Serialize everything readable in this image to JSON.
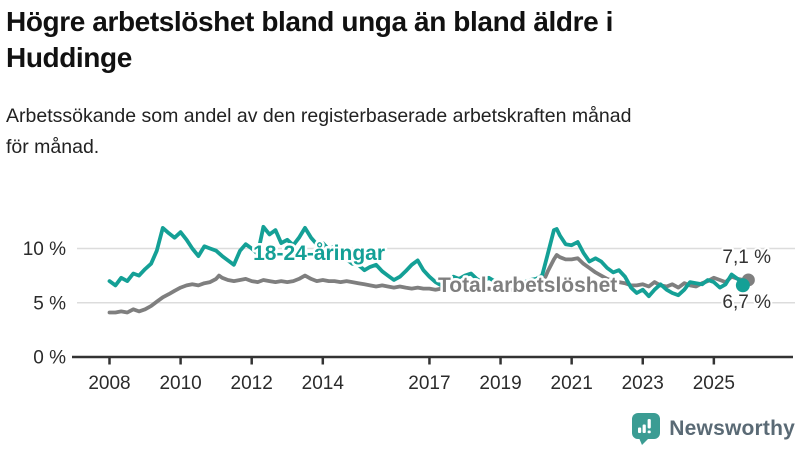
{
  "header": {
    "title": "Högre arbetslöshet bland unga än bland äldre i Huddinge",
    "title_lines": [
      "Högre arbetslöshet bland unga än bland äldre i",
      "Huddinge"
    ],
    "subtitle": "Arbetssökande som andel av den registerbaserade arbetskraften månad för månad.",
    "subtitle_lines": [
      "Arbetssökande som andel av den registerbaserade arbetskraften månad",
      "för månad."
    ]
  },
  "chart_data": {
    "type": "line",
    "title": "Högre arbetslöshet bland unga än bland äldre i Huddinge",
    "subtitle": "Arbetssökande som andel av den registerbaserade arbetskraften månad för månad.",
    "grid": "horizontal-only",
    "legend_position": "inline-labels-on-lines",
    "xlim": [
      2007.8,
      2026.1
    ],
    "ylim": [
      0,
      13.5
    ],
    "x_ticks": [
      2008,
      2010,
      2012,
      2014,
      2017,
      2019,
      2021,
      2023,
      2025
    ],
    "y_ticks": [
      {
        "value": 0,
        "label": "0 %"
      },
      {
        "value": 5,
        "label": "5 %"
      },
      {
        "value": 10,
        "label": "10 %"
      }
    ],
    "colors": {
      "youth": "#14A096",
      "total": "#7F7F7F",
      "grid": "#dcdcdc",
      "axis": "#333333",
      "text": "#2b2b2b"
    },
    "series": [
      {
        "name": "Total arbetslöshet",
        "color": "#7F7F7F",
        "end_label": "7,1 %",
        "end_value": 7.1,
        "label_pos": {
          "year": 2017.24,
          "pct": 5.99
        },
        "end_label_pos": {
          "year": 2026.6,
          "pct": 8.66
        },
        "points": [
          [
            2008.0,
            4.1
          ],
          [
            2008.17,
            4.1
          ],
          [
            2008.33,
            4.2
          ],
          [
            2008.5,
            4.1
          ],
          [
            2008.67,
            4.4
          ],
          [
            2008.83,
            4.2
          ],
          [
            2009.0,
            4.4
          ],
          [
            2009.17,
            4.7
          ],
          [
            2009.33,
            5.1
          ],
          [
            2009.5,
            5.5
          ],
          [
            2009.67,
            5.8
          ],
          [
            2009.83,
            6.1
          ],
          [
            2010.0,
            6.4
          ],
          [
            2010.17,
            6.6
          ],
          [
            2010.33,
            6.7
          ],
          [
            2010.5,
            6.6
          ],
          [
            2010.67,
            6.8
          ],
          [
            2010.83,
            6.9
          ],
          [
            2011.0,
            7.2
          ],
          [
            2011.08,
            7.5
          ],
          [
            2011.17,
            7.3
          ],
          [
            2011.33,
            7.1
          ],
          [
            2011.5,
            7.0
          ],
          [
            2011.67,
            7.1
          ],
          [
            2011.83,
            7.2
          ],
          [
            2012.0,
            7.0
          ],
          [
            2012.17,
            6.9
          ],
          [
            2012.33,
            7.1
          ],
          [
            2012.5,
            7.0
          ],
          [
            2012.67,
            6.9
          ],
          [
            2012.83,
            7.0
          ],
          [
            2013.0,
            6.9
          ],
          [
            2013.17,
            7.0
          ],
          [
            2013.33,
            7.2
          ],
          [
            2013.5,
            7.5
          ],
          [
            2013.67,
            7.2
          ],
          [
            2013.83,
            7.0
          ],
          [
            2014.0,
            7.1
          ],
          [
            2014.17,
            7.0
          ],
          [
            2014.33,
            7.0
          ],
          [
            2014.5,
            6.9
          ],
          [
            2014.67,
            7.0
          ],
          [
            2014.83,
            6.9
          ],
          [
            2015.0,
            6.8
          ],
          [
            2015.17,
            6.7
          ],
          [
            2015.33,
            6.6
          ],
          [
            2015.5,
            6.5
          ],
          [
            2015.67,
            6.6
          ],
          [
            2015.83,
            6.5
          ],
          [
            2016.0,
            6.4
          ],
          [
            2016.17,
            6.5
          ],
          [
            2016.33,
            6.4
          ],
          [
            2016.5,
            6.3
          ],
          [
            2016.67,
            6.4
          ],
          [
            2016.83,
            6.3
          ],
          [
            2017.0,
            6.3
          ],
          [
            2017.17,
            6.2
          ],
          [
            2017.33,
            6.3
          ],
          [
            2017.5,
            6.4
          ],
          [
            2017.67,
            6.4
          ],
          [
            2017.83,
            6.3
          ],
          [
            2018.0,
            6.3
          ],
          [
            2018.17,
            6.4
          ],
          [
            2018.33,
            6.3
          ],
          [
            2018.5,
            6.2
          ],
          [
            2018.67,
            6.3
          ],
          [
            2018.83,
            6.2
          ],
          [
            2019.0,
            6.2
          ],
          [
            2019.17,
            6.1
          ],
          [
            2019.33,
            6.2
          ],
          [
            2019.5,
            6.3
          ],
          [
            2019.67,
            6.3
          ],
          [
            2019.83,
            6.4
          ],
          [
            2020.0,
            6.4
          ],
          [
            2020.17,
            6.7
          ],
          [
            2020.33,
            7.9
          ],
          [
            2020.5,
            9.0
          ],
          [
            2020.58,
            9.4
          ],
          [
            2020.67,
            9.2
          ],
          [
            2020.83,
            9.0
          ],
          [
            2021.0,
            9.0
          ],
          [
            2021.17,
            9.1
          ],
          [
            2021.33,
            8.6
          ],
          [
            2021.5,
            8.2
          ],
          [
            2021.67,
            7.8
          ],
          [
            2021.83,
            7.5
          ],
          [
            2022.0,
            7.2
          ],
          [
            2022.17,
            7.0
          ],
          [
            2022.33,
            6.9
          ],
          [
            2022.5,
            6.8
          ],
          [
            2022.67,
            6.6
          ],
          [
            2022.83,
            6.6
          ],
          [
            2023.0,
            6.7
          ],
          [
            2023.17,
            6.5
          ],
          [
            2023.33,
            6.9
          ],
          [
            2023.5,
            6.6
          ],
          [
            2023.67,
            6.5
          ],
          [
            2023.83,
            6.7
          ],
          [
            2024.0,
            6.4
          ],
          [
            2024.17,
            6.8
          ],
          [
            2024.33,
            6.6
          ],
          [
            2024.5,
            6.5
          ],
          [
            2024.67,
            6.8
          ],
          [
            2024.83,
            7.0
          ],
          [
            2025.0,
            7.3
          ],
          [
            2025.17,
            7.1
          ],
          [
            2025.33,
            6.9
          ],
          [
            2025.5,
            7.4
          ],
          [
            2025.67,
            7.2
          ],
          [
            2025.83,
            7.1
          ]
        ]
      },
      {
        "name": "18-24-åringar",
        "color": "#14A096",
        "end_label": "6,7 %",
        "end_value": 6.7,
        "label_pos": {
          "year": 2012.04,
          "pct": 8.94
        },
        "end_label_pos": {
          "year": 2026.6,
          "pct": 4.52
        },
        "points": [
          [
            2008.0,
            7.0
          ],
          [
            2008.17,
            6.6
          ],
          [
            2008.33,
            7.3
          ],
          [
            2008.5,
            7.0
          ],
          [
            2008.67,
            7.7
          ],
          [
            2008.83,
            7.5
          ],
          [
            2009.0,
            8.1
          ],
          [
            2009.17,
            8.6
          ],
          [
            2009.33,
            9.8
          ],
          [
            2009.5,
            11.9
          ],
          [
            2009.67,
            11.4
          ],
          [
            2009.83,
            11.0
          ],
          [
            2010.0,
            11.5
          ],
          [
            2010.17,
            10.8
          ],
          [
            2010.33,
            10.0
          ],
          [
            2010.5,
            9.3
          ],
          [
            2010.67,
            10.2
          ],
          [
            2010.83,
            10.0
          ],
          [
            2011.0,
            9.8
          ],
          [
            2011.17,
            9.3
          ],
          [
            2011.33,
            8.9
          ],
          [
            2011.5,
            8.5
          ],
          [
            2011.67,
            9.8
          ],
          [
            2011.83,
            10.4
          ],
          [
            2012.0,
            10.0
          ],
          [
            2012.17,
            9.5
          ],
          [
            2012.33,
            12.0
          ],
          [
            2012.5,
            11.3
          ],
          [
            2012.67,
            11.7
          ],
          [
            2012.83,
            10.5
          ],
          [
            2013.0,
            10.8
          ],
          [
            2013.17,
            10.3
          ],
          [
            2013.33,
            11.0
          ],
          [
            2013.5,
            11.9
          ],
          [
            2013.67,
            11.0
          ],
          [
            2013.83,
            10.4
          ],
          [
            2014.0,
            10.5
          ],
          [
            2014.17,
            9.9
          ],
          [
            2014.33,
            10.2
          ],
          [
            2014.5,
            9.6
          ],
          [
            2014.67,
            9.0
          ],
          [
            2014.83,
            8.6
          ],
          [
            2015.0,
            8.5
          ],
          [
            2015.17,
            8.0
          ],
          [
            2015.33,
            8.3
          ],
          [
            2015.5,
            8.5
          ],
          [
            2015.67,
            7.9
          ],
          [
            2015.83,
            7.5
          ],
          [
            2016.0,
            7.1
          ],
          [
            2016.17,
            7.4
          ],
          [
            2016.33,
            7.9
          ],
          [
            2016.5,
            8.5
          ],
          [
            2016.67,
            8.9
          ],
          [
            2016.83,
            8.0
          ],
          [
            2017.0,
            7.4
          ],
          [
            2017.17,
            6.9
          ],
          [
            2017.33,
            6.6
          ],
          [
            2017.5,
            7.0
          ],
          [
            2017.67,
            7.4
          ],
          [
            2017.83,
            7.2
          ],
          [
            2018.0,
            7.5
          ],
          [
            2018.17,
            7.7
          ],
          [
            2018.33,
            7.2
          ],
          [
            2018.5,
            6.9
          ],
          [
            2018.67,
            7.3
          ],
          [
            2018.83,
            7.0
          ],
          [
            2019.0,
            6.8
          ],
          [
            2019.17,
            6.6
          ],
          [
            2019.33,
            6.9
          ],
          [
            2019.5,
            7.1
          ],
          [
            2019.67,
            6.9
          ],
          [
            2019.83,
            7.1
          ],
          [
            2020.0,
            7.2
          ],
          [
            2020.17,
            7.5
          ],
          [
            2020.33,
            9.5
          ],
          [
            2020.5,
            11.7
          ],
          [
            2020.58,
            11.8
          ],
          [
            2020.67,
            11.2
          ],
          [
            2020.83,
            10.4
          ],
          [
            2021.0,
            10.3
          ],
          [
            2021.17,
            10.6
          ],
          [
            2021.33,
            9.6
          ],
          [
            2021.5,
            8.8
          ],
          [
            2021.67,
            9.1
          ],
          [
            2021.83,
            8.8
          ],
          [
            2022.0,
            8.2
          ],
          [
            2022.17,
            7.8
          ],
          [
            2022.33,
            8.0
          ],
          [
            2022.5,
            7.4
          ],
          [
            2022.67,
            6.4
          ],
          [
            2022.83,
            5.9
          ],
          [
            2023.0,
            6.2
          ],
          [
            2023.17,
            5.6
          ],
          [
            2023.33,
            6.2
          ],
          [
            2023.5,
            6.7
          ],
          [
            2023.67,
            6.2
          ],
          [
            2023.83,
            5.9
          ],
          [
            2024.0,
            5.7
          ],
          [
            2024.17,
            6.2
          ],
          [
            2024.33,
            6.9
          ],
          [
            2024.5,
            6.8
          ],
          [
            2024.67,
            6.7
          ],
          [
            2024.83,
            7.1
          ],
          [
            2025.0,
            6.9
          ],
          [
            2025.17,
            6.4
          ],
          [
            2025.33,
            6.7
          ],
          [
            2025.5,
            7.6
          ],
          [
            2025.67,
            7.2
          ],
          [
            2025.83,
            6.7
          ]
        ]
      }
    ]
  },
  "footer": {
    "brand": "Newsworthy",
    "logo_color": "#3B9C93",
    "logo_text_color": "#5a6a75"
  }
}
